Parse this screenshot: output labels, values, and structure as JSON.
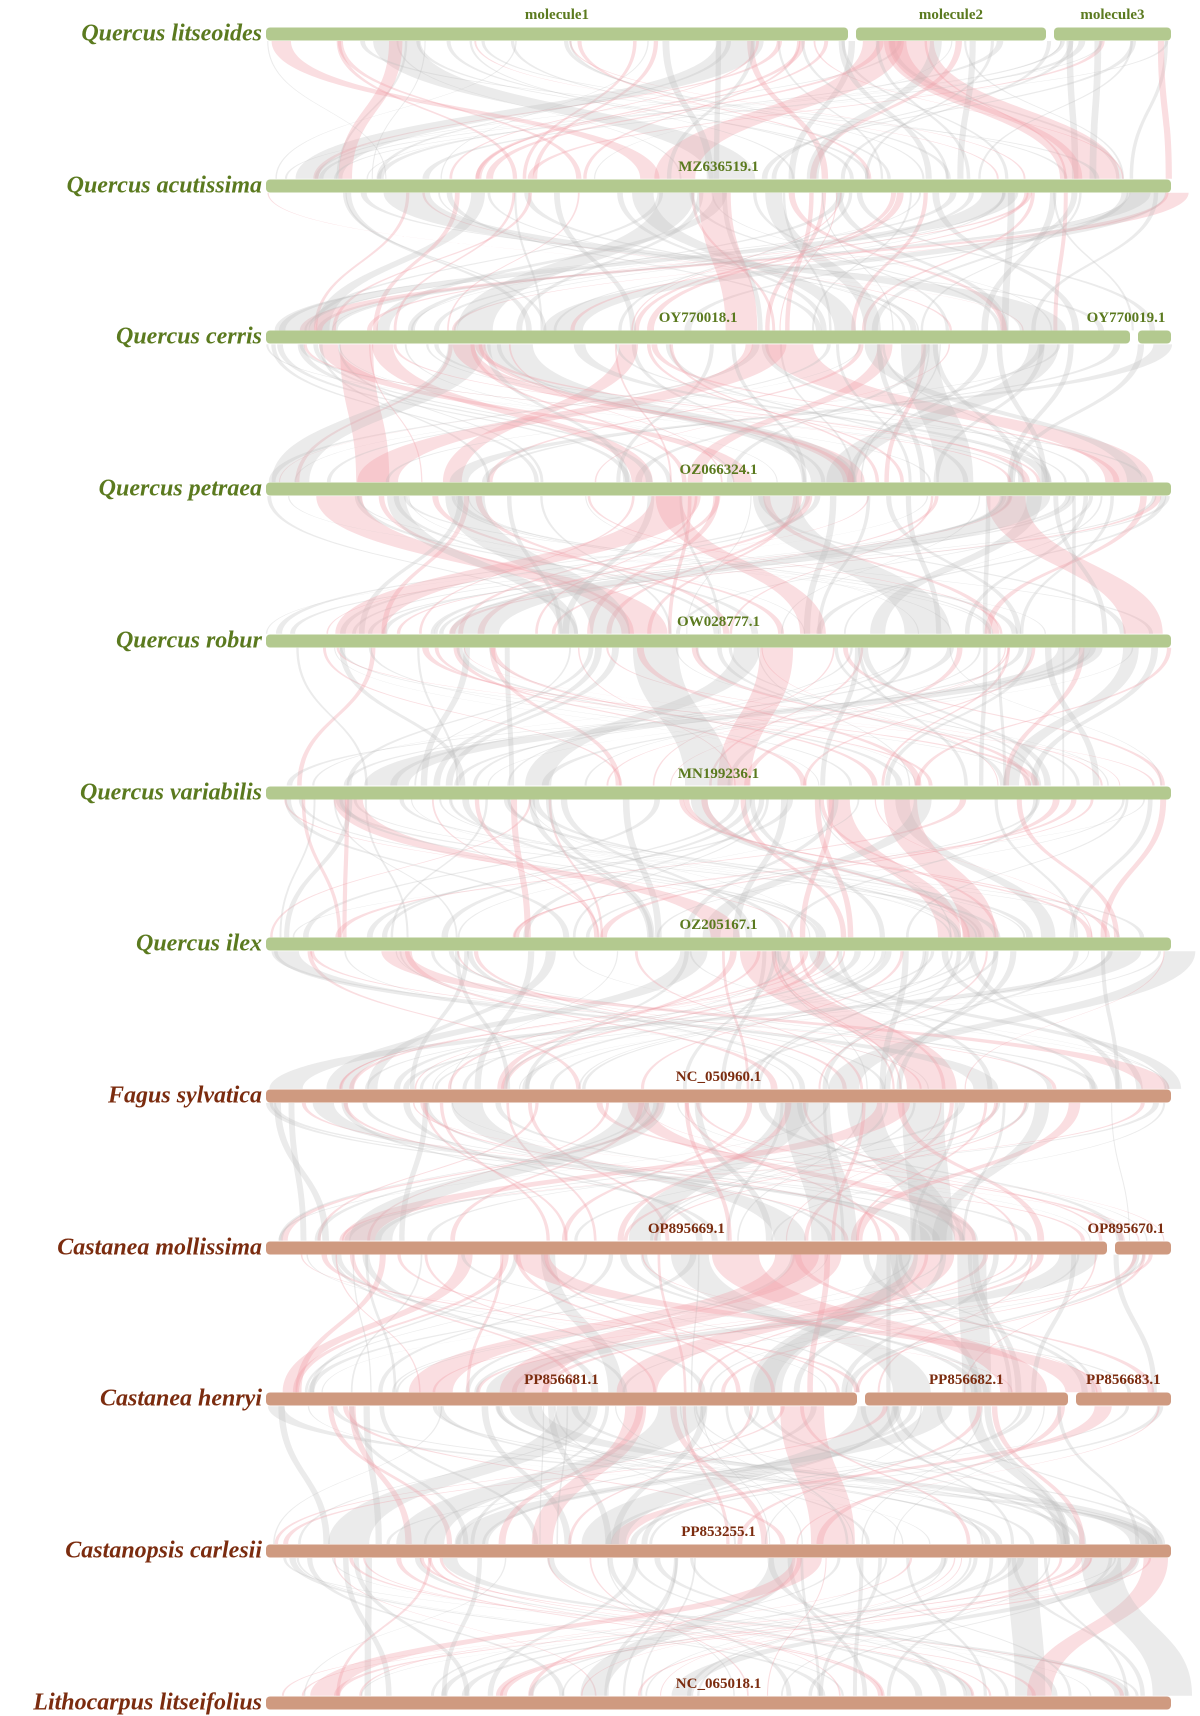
{
  "colors": {
    "quercus_bar": "#b3c98f",
    "quercus_text": "#5b7a1f",
    "other_bar": "#cf9a80",
    "other_text": "#7b2c0f",
    "ribbon_grey": "#bdbdbd",
    "ribbon_red": "#f2a0a8"
  },
  "genomes": [
    {
      "species": "Quercus litseoides",
      "group": "quercus",
      "segments": [
        {
          "label": "molecule1",
          "fraction": 0.643
        },
        {
          "label": "molecule2",
          "fraction": 0.21
        },
        {
          "label": "molecule3",
          "fraction": 0.13
        }
      ]
    },
    {
      "species": "Quercus acutissima",
      "group": "quercus",
      "segments": [
        {
          "label": "MZ636519.1",
          "fraction": 1.0
        }
      ]
    },
    {
      "species": "Quercus cerris",
      "group": "quercus",
      "segments": [
        {
          "label": "OY770018.1",
          "fraction": 0.955
        },
        {
          "label": "OY770019.1",
          "fraction": 0.037
        }
      ]
    },
    {
      "species": "Quercus petraea",
      "group": "quercus",
      "segments": [
        {
          "label": "OZ066324.1",
          "fraction": 1.0
        }
      ]
    },
    {
      "species": "Quercus robur",
      "group": "quercus",
      "segments": [
        {
          "label": "OW028777.1",
          "fraction": 1.0
        }
      ]
    },
    {
      "species": "Quercus variabilis",
      "group": "quercus",
      "segments": [
        {
          "label": "MN199236.1",
          "fraction": 1.0
        }
      ]
    },
    {
      "species": "Quercus ilex",
      "group": "quercus",
      "segments": [
        {
          "label": "OZ205167.1",
          "fraction": 1.0
        }
      ]
    },
    {
      "species": "Fagus sylvatica",
      "group": "other",
      "segments": [
        {
          "label": "NC_050960.1",
          "fraction": 1.0
        }
      ]
    },
    {
      "species": "Castanea mollissima",
      "group": "other",
      "segments": [
        {
          "label": "OP895669.1",
          "fraction": 0.929
        },
        {
          "label": "OP895670.1",
          "fraction": 0.063
        }
      ]
    },
    {
      "species": "Castanea henryi",
      "group": "other",
      "segments": [
        {
          "label": "PP856681.1",
          "fraction": 0.653
        },
        {
          "label": "PP856682.1",
          "fraction": 0.224
        },
        {
          "label": "PP856683.1",
          "fraction": 0.106
        }
      ]
    },
    {
      "species": "Castanopsis carlesii",
      "group": "other",
      "segments": [
        {
          "label": "PP853255.1",
          "fraction": 1.0
        }
      ]
    },
    {
      "species": "Lithocarpus litseifolius",
      "group": "other",
      "segments": [
        {
          "label": "NC_065018.1",
          "fraction": 1.0
        }
      ]
    }
  ]
}
